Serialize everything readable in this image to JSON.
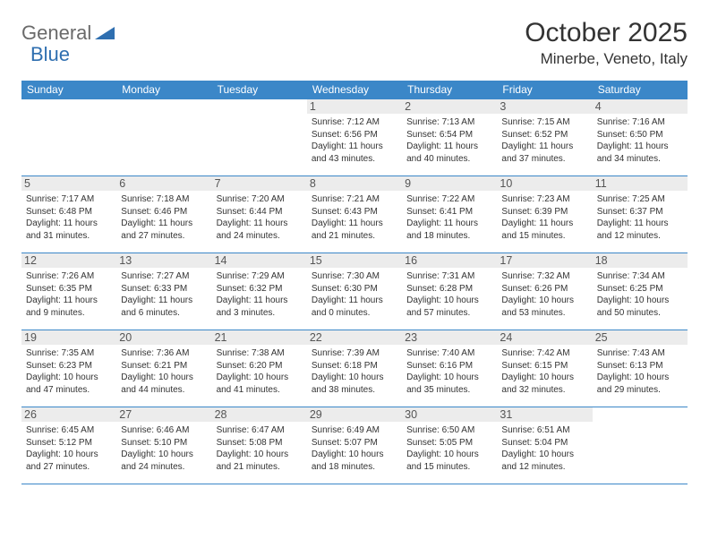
{
  "logo": {
    "text1": "General",
    "text2": "Blue"
  },
  "title": "October 2025",
  "location": "Minerbe, Veneto, Italy",
  "colors": {
    "header_bg": "#3b87c8",
    "header_text": "#ffffff",
    "border": "#3b87c8",
    "daynum_bg": "#ececec",
    "logo_gray": "#6a6a6a",
    "logo_blue": "#2f6fb0"
  },
  "weekdays": [
    "Sunday",
    "Monday",
    "Tuesday",
    "Wednesday",
    "Thursday",
    "Friday",
    "Saturday"
  ],
  "first_weekday_index": 3,
  "days": [
    {
      "n": 1,
      "sunrise": "7:12 AM",
      "sunset": "6:56 PM",
      "day_h": 11,
      "day_m": 43
    },
    {
      "n": 2,
      "sunrise": "7:13 AM",
      "sunset": "6:54 PM",
      "day_h": 11,
      "day_m": 40
    },
    {
      "n": 3,
      "sunrise": "7:15 AM",
      "sunset": "6:52 PM",
      "day_h": 11,
      "day_m": 37
    },
    {
      "n": 4,
      "sunrise": "7:16 AM",
      "sunset": "6:50 PM",
      "day_h": 11,
      "day_m": 34
    },
    {
      "n": 5,
      "sunrise": "7:17 AM",
      "sunset": "6:48 PM",
      "day_h": 11,
      "day_m": 31
    },
    {
      "n": 6,
      "sunrise": "7:18 AM",
      "sunset": "6:46 PM",
      "day_h": 11,
      "day_m": 27
    },
    {
      "n": 7,
      "sunrise": "7:20 AM",
      "sunset": "6:44 PM",
      "day_h": 11,
      "day_m": 24
    },
    {
      "n": 8,
      "sunrise": "7:21 AM",
      "sunset": "6:43 PM",
      "day_h": 11,
      "day_m": 21
    },
    {
      "n": 9,
      "sunrise": "7:22 AM",
      "sunset": "6:41 PM",
      "day_h": 11,
      "day_m": 18
    },
    {
      "n": 10,
      "sunrise": "7:23 AM",
      "sunset": "6:39 PM",
      "day_h": 11,
      "day_m": 15
    },
    {
      "n": 11,
      "sunrise": "7:25 AM",
      "sunset": "6:37 PM",
      "day_h": 11,
      "day_m": 12
    },
    {
      "n": 12,
      "sunrise": "7:26 AM",
      "sunset": "6:35 PM",
      "day_h": 11,
      "day_m": 9
    },
    {
      "n": 13,
      "sunrise": "7:27 AM",
      "sunset": "6:33 PM",
      "day_h": 11,
      "day_m": 6
    },
    {
      "n": 14,
      "sunrise": "7:29 AM",
      "sunset": "6:32 PM",
      "day_h": 11,
      "day_m": 3
    },
    {
      "n": 15,
      "sunrise": "7:30 AM",
      "sunset": "6:30 PM",
      "day_h": 11,
      "day_m": 0
    },
    {
      "n": 16,
      "sunrise": "7:31 AM",
      "sunset": "6:28 PM",
      "day_h": 10,
      "day_m": 57
    },
    {
      "n": 17,
      "sunrise": "7:32 AM",
      "sunset": "6:26 PM",
      "day_h": 10,
      "day_m": 53
    },
    {
      "n": 18,
      "sunrise": "7:34 AM",
      "sunset": "6:25 PM",
      "day_h": 10,
      "day_m": 50
    },
    {
      "n": 19,
      "sunrise": "7:35 AM",
      "sunset": "6:23 PM",
      "day_h": 10,
      "day_m": 47
    },
    {
      "n": 20,
      "sunrise": "7:36 AM",
      "sunset": "6:21 PM",
      "day_h": 10,
      "day_m": 44
    },
    {
      "n": 21,
      "sunrise": "7:38 AM",
      "sunset": "6:20 PM",
      "day_h": 10,
      "day_m": 41
    },
    {
      "n": 22,
      "sunrise": "7:39 AM",
      "sunset": "6:18 PM",
      "day_h": 10,
      "day_m": 38
    },
    {
      "n": 23,
      "sunrise": "7:40 AM",
      "sunset": "6:16 PM",
      "day_h": 10,
      "day_m": 35
    },
    {
      "n": 24,
      "sunrise": "7:42 AM",
      "sunset": "6:15 PM",
      "day_h": 10,
      "day_m": 32
    },
    {
      "n": 25,
      "sunrise": "7:43 AM",
      "sunset": "6:13 PM",
      "day_h": 10,
      "day_m": 29
    },
    {
      "n": 26,
      "sunrise": "6:45 AM",
      "sunset": "5:12 PM",
      "day_h": 10,
      "day_m": 27
    },
    {
      "n": 27,
      "sunrise": "6:46 AM",
      "sunset": "5:10 PM",
      "day_h": 10,
      "day_m": 24
    },
    {
      "n": 28,
      "sunrise": "6:47 AM",
      "sunset": "5:08 PM",
      "day_h": 10,
      "day_m": 21
    },
    {
      "n": 29,
      "sunrise": "6:49 AM",
      "sunset": "5:07 PM",
      "day_h": 10,
      "day_m": 18
    },
    {
      "n": 30,
      "sunrise": "6:50 AM",
      "sunset": "5:05 PM",
      "day_h": 10,
      "day_m": 15
    },
    {
      "n": 31,
      "sunrise": "6:51 AM",
      "sunset": "5:04 PM",
      "day_h": 10,
      "day_m": 12
    }
  ],
  "labels": {
    "sunrise": "Sunrise:",
    "sunset": "Sunset:",
    "daylight": "Daylight:",
    "hours": "hours",
    "and": "and",
    "minutes": "minutes."
  }
}
